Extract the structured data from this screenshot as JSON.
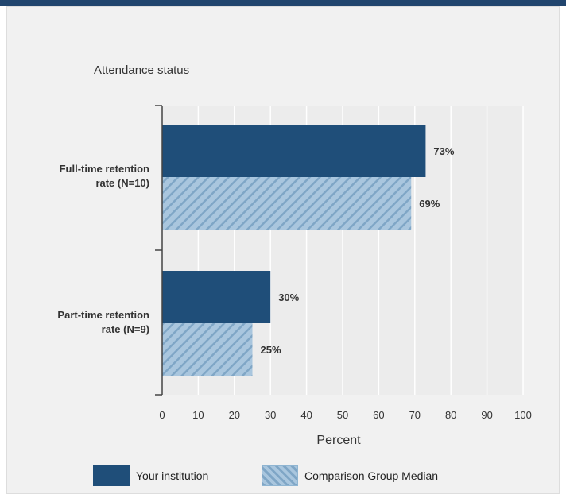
{
  "chart_data": {
    "type": "bar",
    "orientation": "horizontal",
    "title": "Attendance status",
    "xlabel": "Percent",
    "ylabel": "",
    "xlim": [
      0,
      100
    ],
    "ticks": [
      "0",
      "10",
      "20",
      "30",
      "40",
      "50",
      "60",
      "70",
      "80",
      "90",
      "100"
    ],
    "categories": [
      [
        "Full-time retention",
        "rate (N=10)"
      ],
      [
        "Part-time retention",
        "rate (N=9)"
      ]
    ],
    "series": [
      {
        "name": "Your institution",
        "values": [
          73,
          30
        ],
        "labels": [
          "73%",
          "30%"
        ],
        "color": "#1f4e79"
      },
      {
        "name": "Comparison Group Median",
        "values": [
          69,
          25
        ],
        "labels": [
          "69%",
          "25%"
        ],
        "color": "#a9c6de",
        "pattern": "diagonal-hatch"
      }
    ],
    "grid": "vertical",
    "legend_position": "bottom"
  },
  "colors": {
    "header_bar": "#21456e",
    "panel_bg": "#f1f1f1",
    "plot_bg": "#ececec",
    "gridline": "#ffffff",
    "hatch_line": "#7fa6c6"
  }
}
